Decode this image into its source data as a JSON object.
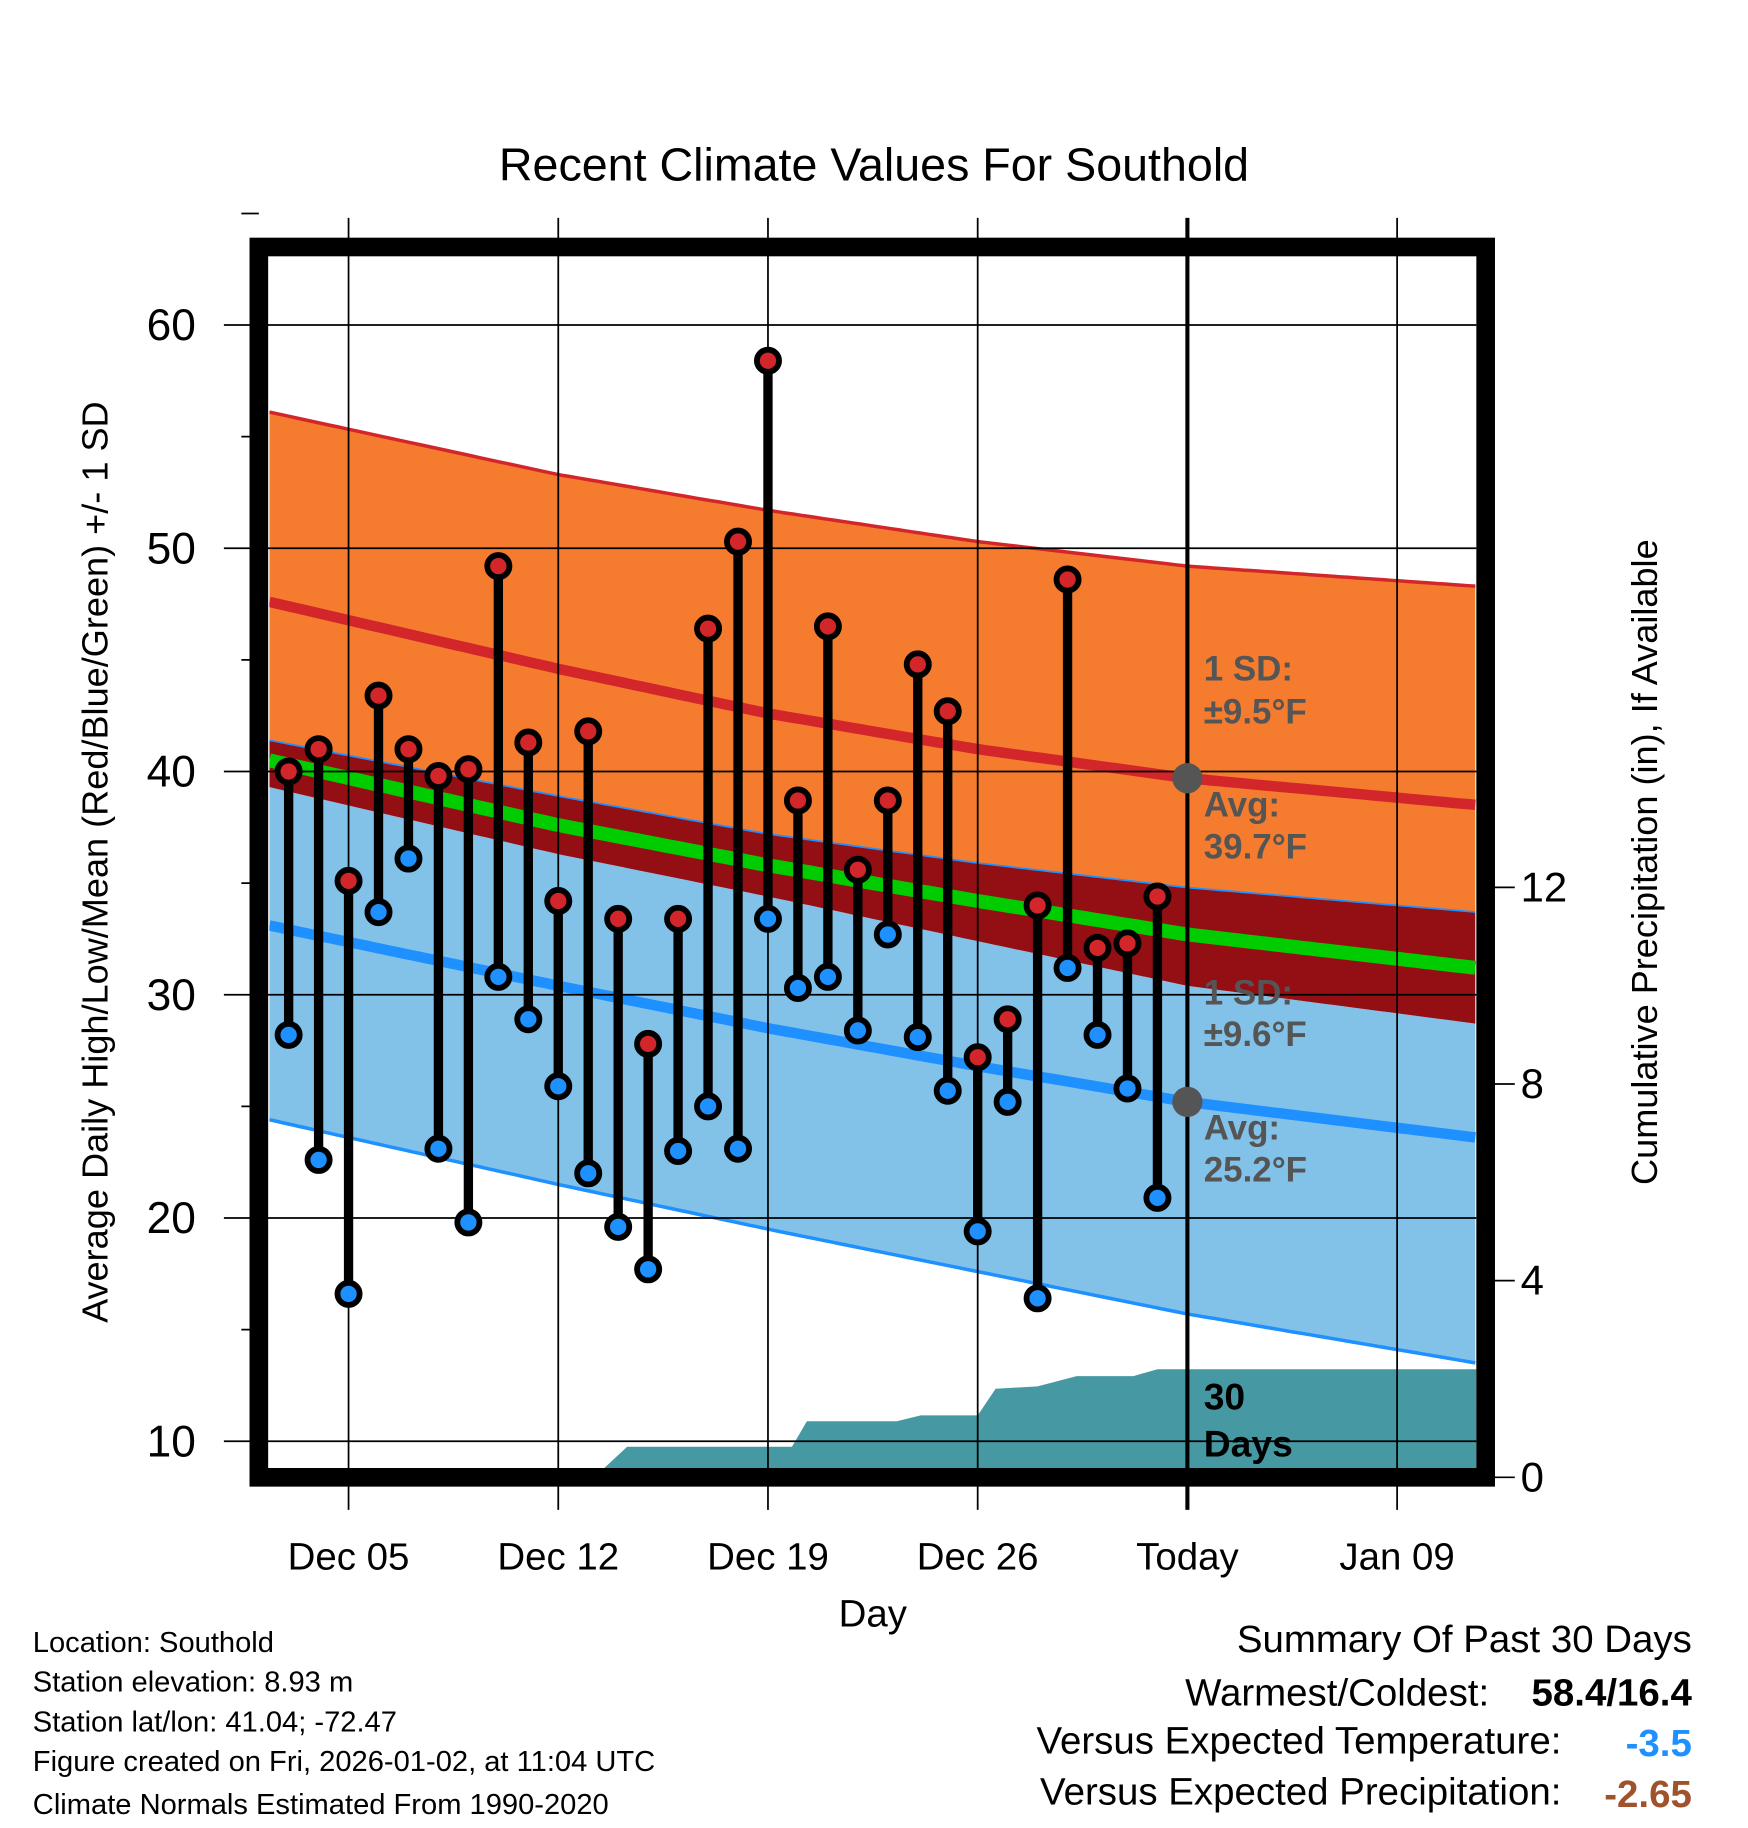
{
  "chart_data": {
    "type": "line",
    "title": "Recent Climate Values For Southold",
    "xlabel": "Day",
    "ylabel": "Average Daily High/Low/Mean (Red/Blue/Green) +/- 1 SD",
    "y2label": "Cumulative Precipitation (in), If Available",
    "ylim": [
      8.9,
      64.2
    ],
    "y2lim": [
      0,
      29
    ],
    "x_ticks": [
      {
        "day": 4,
        "label": "Dec 05"
      },
      {
        "day": 11,
        "label": "Dec 12"
      },
      {
        "day": 18,
        "label": "Dec 19"
      },
      {
        "day": 25,
        "label": "Dec 26"
      },
      {
        "day": 32,
        "label": "Today"
      },
      {
        "day": 39,
        "label": "Jan 09"
      }
    ],
    "y_ticks": [
      "10",
      "20",
      "30",
      "40",
      "50",
      "60"
    ],
    "y2_ticks": [
      "0",
      "4",
      "8",
      "12"
    ],
    "day_axis_note": "day index 0 = Dec 01",
    "days": [
      "Dec 03",
      "Dec 04",
      "Dec 05",
      "Dec 06",
      "Dec 07",
      "Dec 08",
      "Dec 09",
      "Dec 10",
      "Dec 11",
      "Dec 12",
      "Dec 13",
      "Dec 14",
      "Dec 15",
      "Dec 16",
      "Dec 17",
      "Dec 18",
      "Dec 19",
      "Dec 20",
      "Dec 21",
      "Dec 22",
      "Dec 23",
      "Dec 24",
      "Dec 25",
      "Dec 26",
      "Dec 27",
      "Dec 28",
      "Dec 29",
      "Dec 30",
      "Dec 31",
      "Jan 01"
    ],
    "highs": [
      40.0,
      41.0,
      35.1,
      43.4,
      41.0,
      39.8,
      40.1,
      49.2,
      41.3,
      34.2,
      41.8,
      33.4,
      27.8,
      33.4,
      46.4,
      50.3,
      58.4,
      38.7,
      46.5,
      35.6,
      38.7,
      44.8,
      42.7,
      27.2,
      28.9,
      34.0,
      48.6,
      32.1,
      32.3,
      34.4
    ],
    "lows": [
      28.2,
      22.6,
      16.6,
      33.7,
      36.1,
      23.1,
      19.8,
      30.8,
      28.9,
      25.9,
      22.0,
      19.6,
      17.7,
      23.0,
      25.0,
      23.1,
      33.4,
      30.3,
      30.8,
      28.4,
      32.7,
      28.1,
      25.7,
      19.4,
      25.2,
      16.4,
      31.2,
      28.2,
      25.8,
      20.9
    ],
    "normals": {
      "days": [
        1.36,
        11,
        18,
        25,
        32,
        41.65
      ],
      "high_plus_sd": [
        56.1,
        53.3,
        51.7,
        50.3,
        49.2,
        48.3
      ],
      "high_avg": [
        47.6,
        44.6,
        42.6,
        41.0,
        39.7,
        38.5
      ],
      "high_minus_sd": [
        41.4,
        38.9,
        37.2,
        35.9,
        34.8,
        33.7
      ],
      "mean": [
        40.5,
        37.6,
        35.8,
        34.2,
        32.7,
        31.2
      ],
      "low_plus_sd": [
        39.3,
        36.3,
        34.4,
        32.4,
        30.4,
        28.7
      ],
      "low_avg": [
        33.1,
        30.4,
        28.5,
        26.8,
        25.2,
        23.6
      ],
      "low_minus_sd": [
        24.4,
        21.5,
        19.5,
        17.6,
        15.7,
        13.5
      ]
    },
    "precip_cumulative": {
      "days": [
        12.2,
        13.3,
        18.8,
        19.3,
        22.3,
        23.1,
        25.0,
        25.6,
        27.0,
        28.3,
        30.2,
        31.0,
        41.65
      ],
      "values": [
        0,
        0.62,
        0.62,
        1.14,
        1.14,
        1.26,
        1.26,
        1.8,
        1.85,
        2.06,
        2.06,
        2.2,
        2.2
      ]
    },
    "annotations": {
      "high_sd_label": "1 SD:",
      "high_sd_value": "±9.5°F",
      "high_avg_label": "Avg:",
      "high_avg_value": "39.7°F",
      "low_sd_label": "1 SD:",
      "low_sd_value": "±9.6°F",
      "low_avg_label": "Avg:",
      "low_avg_value": "25.2°F",
      "window_count": "30",
      "window_unit": "Days"
    },
    "colors": {
      "high_band": "#f57b2e",
      "high_line": "#d2262a",
      "overlap_band": "#930f14",
      "mean_line": "#00cc00",
      "low_band": "#82c1e8",
      "low_line": "#1e90ff",
      "precip": "#4699a2",
      "high_marker": "#d2262a",
      "low_marker": "#1e90ff",
      "today_marker": "#555555"
    }
  },
  "info": {
    "location": "Location: Southold",
    "elevation": "Station elevation: 8.93 m",
    "latlon": "Station lat/lon: 41.04; -72.47",
    "created": "Figure created on Fri, 2026-01-02, at 11:04 UTC",
    "normals": "Climate Normals Estimated From 1990-2020"
  },
  "summary": {
    "title": "Summary Of Past 30 Days",
    "warmest_label": "Warmest/Coldest:",
    "warmest_value": "58.4/16.4",
    "temp_label": "Versus Expected Temperature:",
    "temp_value": "-3.5",
    "temp_color": "#1e90ff",
    "precip_label": "Versus Expected Precipitation:",
    "precip_value": "-2.65",
    "precip_color": "#a0522d"
  }
}
